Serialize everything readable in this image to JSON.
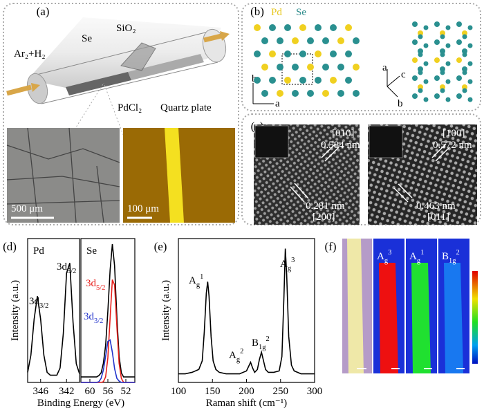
{
  "chart_data": [
    {
      "type": "line",
      "panel": "(d)",
      "title": "Pd",
      "ylabel": "Intensity (a.u.)",
      "xlabel": "Binding Energy (eV)",
      "x": [
        348,
        347.5,
        347,
        346.5,
        346,
        345.5,
        345,
        344.5,
        344,
        343.5,
        343,
        342.5,
        342,
        341.5,
        341,
        340.5,
        340
      ],
      "xlim": [
        348,
        340
      ],
      "xticks": [
        346,
        342
      ],
      "ylim": [
        0,
        1
      ],
      "series": [
        {
          "color": "#000000",
          "values": [
            0.07,
            0.19,
            0.44,
            0.6,
            0.44,
            0.19,
            0.07,
            0.05,
            0.05,
            0.05,
            0.1,
            0.34,
            0.76,
            0.83,
            0.42,
            0.13,
            0.06
          ]
        }
      ],
      "annotations": [
        {
          "base": "3d",
          "sub": "3/2",
          "color": "#000000"
        },
        {
          "base": "3d",
          "sub": "5/2",
          "color": "#000000"
        }
      ]
    },
    {
      "type": "line",
      "title": "Se",
      "x": [
        62,
        61.5,
        61,
        60.5,
        60,
        59.5,
        59,
        58.5,
        58,
        57.5,
        57,
        56.5,
        56,
        55.5,
        55,
        54.5,
        54,
        53.5,
        53,
        52.5,
        52,
        51.5,
        51,
        50.5,
        50
      ],
      "xlim": [
        62,
        50
      ],
      "xticks": [
        60,
        56,
        52
      ],
      "ylim": [
        0,
        1.05
      ],
      "series": [
        {
          "color": "#000000",
          "values": [
            0.04,
            0.04,
            0.04,
            0.04,
            0.04,
            0.04,
            0.04,
            0.04,
            0.05,
            0.07,
            0.14,
            0.27,
            0.52,
            0.82,
            1.01,
            0.85,
            0.48,
            0.19,
            0.07,
            0.04,
            0.04,
            0.04,
            0.04,
            0.04,
            0.04
          ]
        },
        {
          "color": "#e8201c",
          "values": [
            0,
            0,
            0,
            0,
            0,
            0,
            0,
            0,
            0,
            0,
            0.005,
            0.04,
            0.18,
            0.47,
            0.75,
            0.71,
            0.41,
            0.14,
            0.03,
            0,
            0,
            0,
            0,
            0,
            0
          ]
        },
        {
          "color": "#2233cc",
          "values": [
            0,
            0,
            0,
            0,
            0,
            0,
            0,
            0,
            0.005,
            0.03,
            0.09,
            0.19,
            0.3,
            0.31,
            0.22,
            0.1,
            0.03,
            0.01,
            0,
            0,
            0,
            0,
            0,
            0,
            0
          ]
        }
      ],
      "annotations": [
        {
          "base": "3d",
          "sub": "5/2",
          "color": "#e8201c"
        },
        {
          "base": "3d",
          "sub": "3/2",
          "color": "#2233cc"
        }
      ]
    },
    {
      "type": "line",
      "panel": "(e)",
      "ylabel": "Intensity (a.u.)",
      "xlabel": "Raman shift (cm⁻¹)",
      "x": [
        100,
        110,
        120,
        130,
        135,
        138,
        141,
        143,
        145,
        148,
        151,
        155,
        160,
        170,
        180,
        190,
        195,
        200,
        203,
        206,
        209,
        212,
        216,
        219,
        222,
        225,
        228,
        232,
        240,
        248,
        252,
        255,
        257,
        259,
        262,
        266,
        270,
        280,
        290,
        300
      ],
      "xlim": [
        100,
        300
      ],
      "xticks": [
        100,
        150,
        200,
        250,
        300
      ],
      "ylim": [
        0,
        1
      ],
      "series": [
        {
          "color": "#000000",
          "values": [
            0.06,
            0.06,
            0.07,
            0.09,
            0.15,
            0.35,
            0.62,
            0.7,
            0.6,
            0.32,
            0.15,
            0.09,
            0.07,
            0.06,
            0.06,
            0.06,
            0.07,
            0.08,
            0.11,
            0.14,
            0.1,
            0.07,
            0.09,
            0.16,
            0.21,
            0.15,
            0.09,
            0.07,
            0.07,
            0.08,
            0.18,
            0.6,
            0.93,
            0.75,
            0.32,
            0.12,
            0.08,
            0.06,
            0.06,
            0.06
          ]
        }
      ],
      "annotations": [
        {
          "base": "A",
          "sub": "g",
          "sup": "1",
          "color": "#000000"
        },
        {
          "base": "A",
          "sub": "g",
          "sup": "2",
          "color": "#000000"
        },
        {
          "base": "B",
          "sub": "1g",
          "sup": "2",
          "color": "#000000"
        },
        {
          "base": "A",
          "sub": "g",
          "sup": "3",
          "color": "#000000"
        }
      ]
    }
  ],
  "panels": {
    "a": {
      "label": "(a)",
      "gas": "Ar₂+H₂",
      "labels": [
        "Se",
        "SiO₂",
        "PdCl₂",
        "Quartz plate"
      ],
      "scale_bars": [
        "500 μm",
        "100 μm"
      ]
    },
    "b": {
      "label": "(b)",
      "elements": [
        "Pd",
        "Se"
      ],
      "axes_left": [
        "b",
        "a"
      ],
      "axes_right": [
        "a",
        "c",
        "b"
      ]
    },
    "c": {
      "label": "(c)",
      "left": [
        "[010]",
        "0.584 nm",
        "0.281 nm",
        "[200]"
      ],
      "right": [
        "[100]",
        "0.572 nm",
        "0.463 nm",
        "[011]"
      ]
    },
    "f": {
      "label": "(f)",
      "maps": [
        {
          "base": "A",
          "sub": "g",
          "sup": "3"
        },
        {
          "base": "A",
          "sub": "g",
          "sup": "1"
        },
        {
          "base": "B",
          "sub": "1g",
          "sup": "2"
        }
      ]
    }
  }
}
